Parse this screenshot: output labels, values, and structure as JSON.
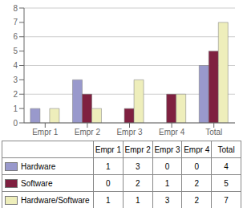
{
  "chart_data": {
    "type": "bar",
    "categories": [
      "Empr 1",
      "Empr 2",
      "Empr 3",
      "Empr 4",
      "Total"
    ],
    "series": [
      {
        "name": "Hardware",
        "color": "#9999cc",
        "values": [
          1,
          3,
          0,
          0,
          4
        ]
      },
      {
        "name": "Software",
        "color": "#7f2040",
        "values": [
          0,
          2,
          1,
          2,
          5
        ]
      },
      {
        "name": "Hardware/Software",
        "color": "#eeeebb",
        "values": [
          1,
          1,
          3,
          2,
          7
        ]
      }
    ],
    "ylim": [
      0,
      8
    ],
    "yticks": [
      0,
      1,
      2,
      3,
      4,
      5,
      6,
      7,
      8
    ],
    "grid": true,
    "legend": "bottom"
  }
}
